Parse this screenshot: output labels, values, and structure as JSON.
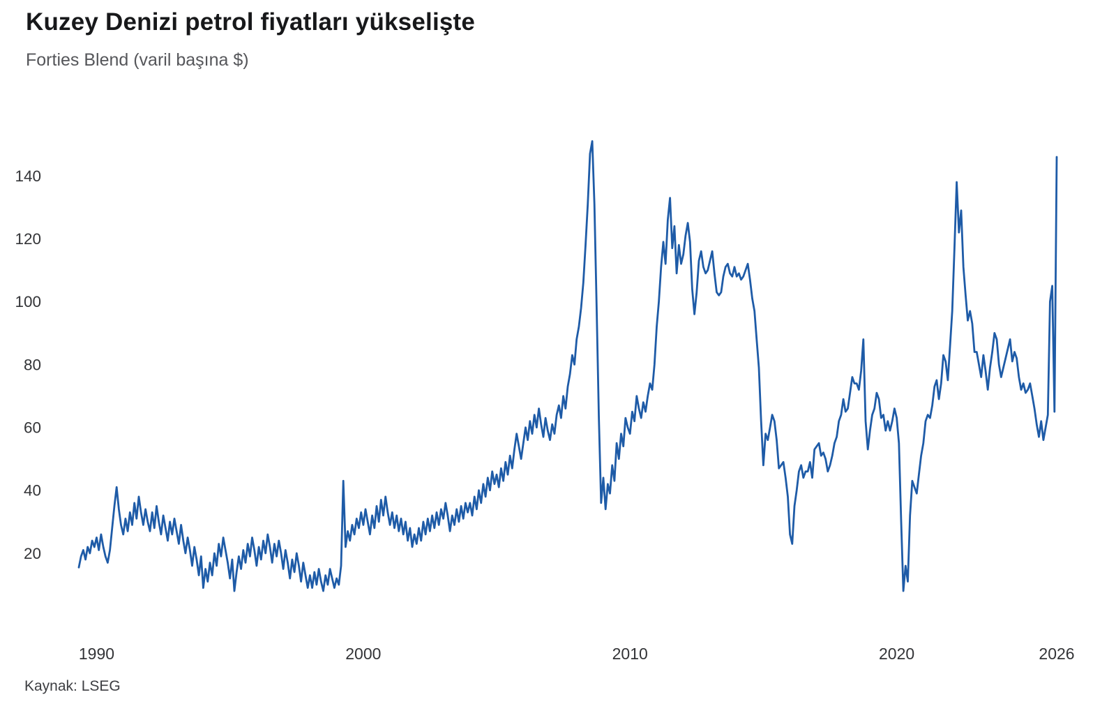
{
  "page": {
    "title": "Kuzey Denizi petrol fiyatları yükselişte",
    "subtitle": "Forties Blend (varil başına $)",
    "source": "Kaynak: LSEG"
  },
  "style": {
    "line_color": "#1e5ba7",
    "tick_text_color": "#333437",
    "title_color": "#17181a",
    "subtitle_color": "#55565a",
    "background_color": "#ffffff"
  },
  "chart_data": {
    "type": "line",
    "title": "Kuzey Denizi petrol fiyatları yükselişte",
    "subtitle": "Forties Blend (varil başına $)",
    "source": "Kaynak: LSEG",
    "series_name": "Forties Blend ($ per barrel)",
    "frequency": "monthly",
    "start": {
      "year": 1989,
      "month": 5
    },
    "end": {
      "year": 2026,
      "month": 1
    },
    "x_ticks": [
      1990,
      2000,
      2010,
      2020,
      2026
    ],
    "y_ticks": [
      20,
      40,
      60,
      80,
      100,
      120,
      140
    ],
    "x_range": [
      1989.3333,
      2026.0
    ],
    "y_range": [
      0,
      160
    ],
    "grid": false,
    "legend": false,
    "values": [
      15.5,
      19,
      21,
      18,
      22,
      20,
      24,
      22,
      25,
      21,
      26,
      22,
      19,
      17,
      21,
      28,
      35,
      41,
      34,
      29,
      26,
      31,
      27,
      33,
      29,
      36,
      31,
      38,
      33,
      29,
      34,
      30,
      27,
      33,
      28,
      35,
      30,
      26,
      32,
      28,
      24,
      30,
      26,
      31,
      27,
      23,
      29,
      24,
      20,
      25,
      21,
      16,
      22,
      18,
      13,
      19,
      9,
      15,
      11,
      17,
      13,
      20,
      16,
      23,
      19,
      25,
      21,
      17,
      12,
      18,
      8,
      14,
      19,
      15,
      21,
      17,
      23,
      19,
      25,
      21,
      16,
      22,
      18,
      24,
      20,
      26,
      22,
      17,
      23,
      19,
      24,
      20,
      15,
      21,
      17,
      12,
      18,
      14,
      20,
      16,
      11,
      17,
      13,
      9,
      13,
      9,
      14,
      10,
      15,
      11,
      8,
      13,
      10,
      15,
      12,
      9,
      12,
      10,
      16,
      43,
      22,
      27,
      24,
      29,
      26,
      31,
      28,
      33,
      29,
      34,
      30,
      26,
      32,
      28,
      35,
      30,
      37,
      32,
      38,
      33,
      29,
      33,
      28,
      32,
      27,
      31,
      26,
      30,
      24,
      28,
      22,
      26,
      23,
      28,
      24,
      30,
      26,
      31,
      27,
      32,
      28,
      33,
      29,
      34,
      31,
      36,
      32,
      27,
      32,
      29,
      34,
      30,
      35,
      31,
      36,
      33,
      36,
      32,
      38,
      34,
      40,
      36,
      42,
      38,
      44,
      40,
      46,
      42,
      45,
      41,
      47,
      43,
      49,
      45,
      51,
      47,
      53,
      58,
      54,
      50,
      55,
      60,
      56,
      62,
      58,
      64,
      60,
      66,
      61,
      57,
      63,
      59,
      56,
      61,
      58,
      64,
      67,
      63,
      70,
      66,
      73,
      77,
      83,
      80,
      88,
      92,
      98,
      106,
      118,
      131,
      147,
      151,
      131,
      98,
      63,
      36,
      44,
      34,
      42,
      39,
      48,
      43,
      55,
      50,
      58,
      54,
      63,
      60,
      58,
      65,
      62,
      70,
      66,
      63,
      68,
      65,
      70,
      74,
      72,
      80,
      92,
      100,
      111,
      119,
      112,
      126,
      133,
      117,
      124,
      109,
      118,
      112,
      115,
      121,
      125,
      119,
      104,
      96,
      103,
      113,
      116,
      111,
      109,
      110,
      113,
      116,
      109,
      103,
      102,
      103,
      108,
      111,
      112,
      109,
      108,
      111,
      108,
      109,
      107,
      108,
      110,
      112,
      107,
      101,
      97,
      88,
      79,
      62,
      48,
      58,
      56,
      60,
      64,
      62,
      56,
      47,
      48,
      49,
      44,
      38,
      26,
      23,
      35,
      40,
      46,
      48,
      44,
      46,
      46,
      49,
      44,
      53,
      54,
      55,
      51,
      52,
      50,
      46,
      48,
      51,
      55,
      57,
      62,
      64,
      69,
      65,
      66,
      71,
      76,
      74,
      74,
      72,
      78,
      88,
      62,
      53,
      59,
      64,
      66,
      71,
      69,
      63,
      64,
      59,
      62,
      59,
      62,
      66,
      63,
      55,
      30,
      8,
      16,
      11,
      32,
      43,
      41,
      39,
      45,
      51,
      55,
      62,
      64,
      63,
      67,
      73,
      75,
      69,
      74,
      83,
      81,
      75,
      86,
      97,
      117,
      138,
      122,
      129,
      111,
      102,
      94,
      97,
      93,
      84,
      84,
      80,
      76,
      83,
      78,
      72,
      79,
      84,
      90,
      88,
      80,
      76,
      79,
      82,
      85,
      88,
      81,
      84,
      82,
      76,
      72,
      74,
      71,
      72,
      74,
      70,
      66,
      61,
      57,
      62,
      56,
      60,
      64,
      100,
      105,
      65,
      146
    ]
  }
}
